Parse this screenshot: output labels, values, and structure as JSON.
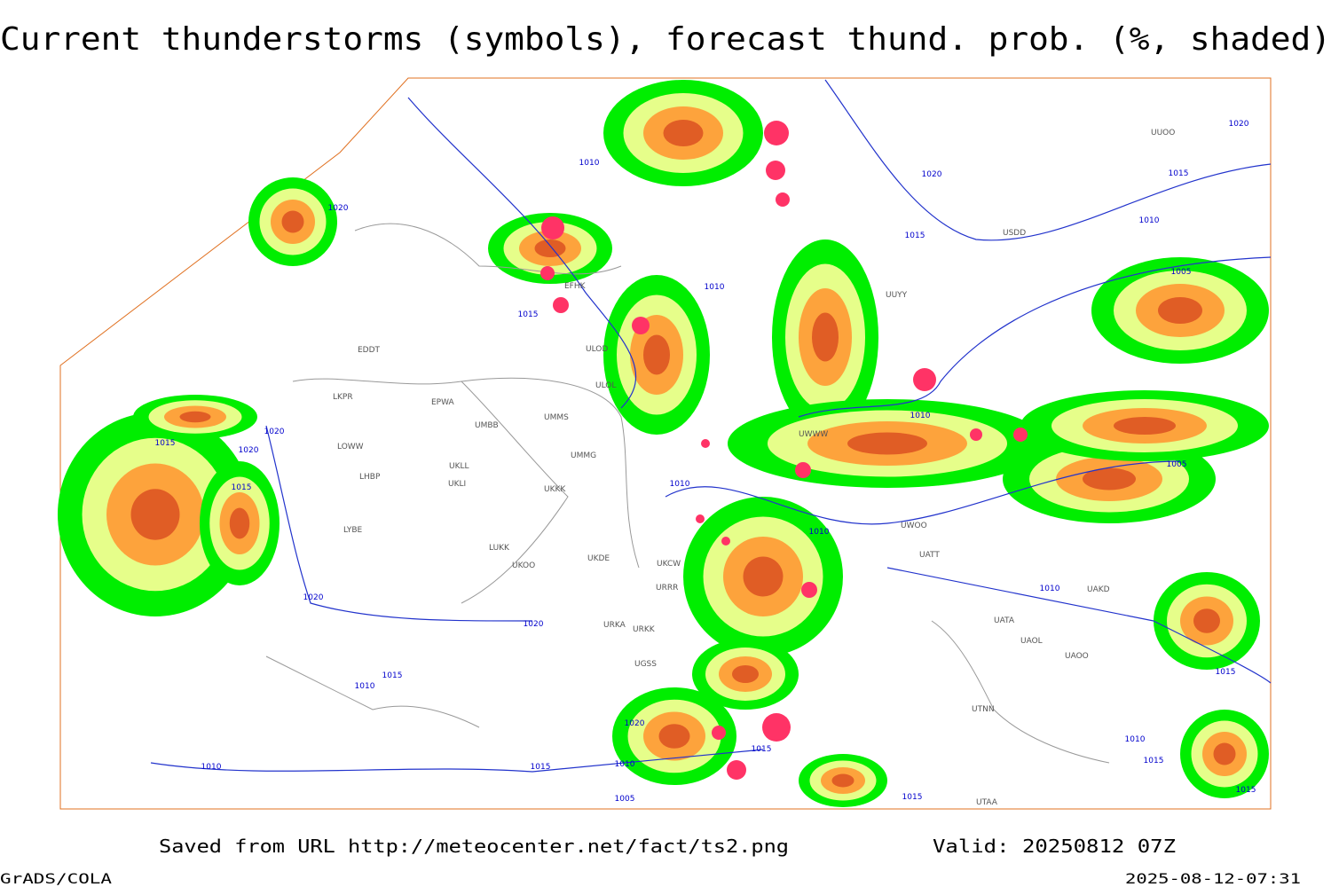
{
  "title": "Current thunderstorms (symbols), forecast thund. prob. (%, shaded)",
  "footer": {
    "source": "Saved from URL http://meteocenter.net/fact/ts2.png",
    "valid": "Valid: 20250812 07Z",
    "software": "GrADS/COLA",
    "timestamp": "2025-08-12-07:31"
  },
  "stations": [
    "EDDT",
    "EPWA",
    "LKPR",
    "LOWW",
    "LHBP",
    "LYBE",
    "UMMS",
    "UMBB",
    "UKLL",
    "UKLI",
    "UKKK",
    "LUKK",
    "UKOO",
    "UKDE",
    "UKCW",
    "URRR",
    "URKK",
    "UGSS",
    "UTAA",
    "UATT",
    "UAOO",
    "UAKD",
    "UATA",
    "UAOL",
    "UWOO",
    "UWWW",
    "ULOL",
    "EFHK",
    "UUYY",
    "URKA",
    "UTNN",
    "UUOO",
    "USDD",
    "ULOD",
    "UMMG"
  ],
  "isobars": [
    1020,
    1010,
    1015,
    1010,
    1020,
    1015,
    1015,
    1020,
    1010,
    1005,
    1020,
    1015,
    1020,
    1015,
    1010,
    1005,
    1010,
    1010,
    1020,
    1020,
    1010,
    1015,
    1010,
    1020,
    1015,
    1010,
    1015,
    1010,
    1005,
    1015,
    1015,
    1010,
    1015,
    1015
  ]
}
